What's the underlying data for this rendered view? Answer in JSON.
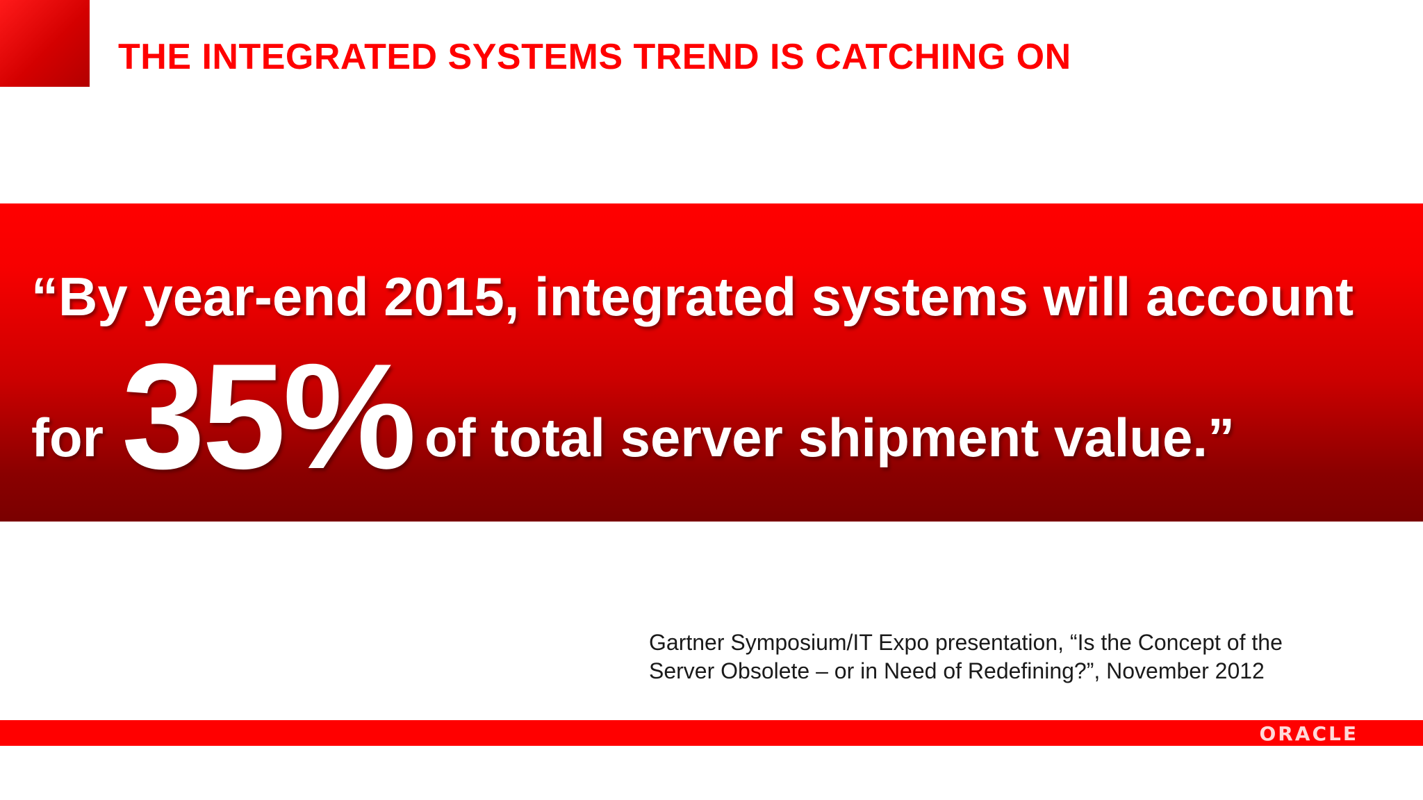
{
  "slide": {
    "title": "THE INTEGRATED SYSTEMS TREND IS CATCHING ON",
    "quote": {
      "line1": "“By year-end 2015, integrated systems will account",
      "prefix": "for",
      "highlight": "35%",
      "suffix": "of total server shipment value.”"
    },
    "source": {
      "line1": "Gartner Symposium/IT Expo presentation, “Is the Concept of the",
      "line2": "Server Obsolete – or in Need of Redefining?”, November 2012"
    },
    "logo": "ORACLE"
  },
  "colors": {
    "brand_red": "#ff0000",
    "dark_red": "#7a0000",
    "text_white": "#ffffff"
  }
}
